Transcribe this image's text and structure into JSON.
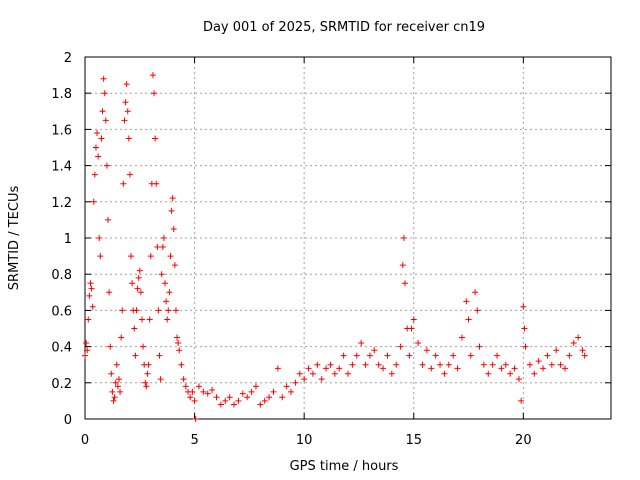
{
  "chart_data": {
    "type": "scatter",
    "title": "Day 001 of 2025, SRMTID for receiver cn19",
    "xlabel": "GPS time / hours",
    "ylabel": "SRMTID / TECUs",
    "xlim": [
      0,
      24
    ],
    "ylim": [
      0,
      2
    ],
    "x_ticks": [
      {
        "value": 0,
        "label": "0"
      },
      {
        "value": 5,
        "label": "5"
      },
      {
        "value": 10,
        "label": "10"
      },
      {
        "value": 15,
        "label": "15"
      },
      {
        "value": 20,
        "label": "20"
      }
    ],
    "y_ticks": [
      {
        "value": 0,
        "label": "0"
      },
      {
        "value": 0.2,
        "label": "0.2"
      },
      {
        "value": 0.4,
        "label": "0.4"
      },
      {
        "value": 0.6,
        "label": "0.6"
      },
      {
        "value": 0.8,
        "label": "0.8"
      },
      {
        "value": 1.0,
        "label": "1"
      },
      {
        "value": 1.2,
        "label": "1.2"
      },
      {
        "value": 1.4,
        "label": "1.4"
      },
      {
        "value": 1.6,
        "label": "1.6"
      },
      {
        "value": 1.8,
        "label": "1.8"
      },
      {
        "value": 2.0,
        "label": "2"
      }
    ],
    "grid": true,
    "series": [
      {
        "name": "SRMTID",
        "color": "#ff0000",
        "marker": "plus",
        "points": [
          [
            0.0,
            0.35
          ],
          [
            0.05,
            0.42
          ],
          [
            0.1,
            0.38
          ],
          [
            0.15,
            0.55
          ],
          [
            0.2,
            0.68
          ],
          [
            0.25,
            0.75
          ],
          [
            0.3,
            0.72
          ],
          [
            0.35,
            0.62
          ],
          [
            0.4,
            1.2
          ],
          [
            0.45,
            1.35
          ],
          [
            0.5,
            1.5
          ],
          [
            0.55,
            1.58
          ],
          [
            0.6,
            1.45
          ],
          [
            0.65,
            1.0
          ],
          [
            0.7,
            0.9
          ],
          [
            0.75,
            1.55
          ],
          [
            0.8,
            1.7
          ],
          [
            0.85,
            1.88
          ],
          [
            0.9,
            1.8
          ],
          [
            0.95,
            1.65
          ],
          [
            1.0,
            1.4
          ],
          [
            1.05,
            1.1
          ],
          [
            1.1,
            0.7
          ],
          [
            1.15,
            0.4
          ],
          [
            1.2,
            0.25
          ],
          [
            1.25,
            0.15
          ],
          [
            1.3,
            0.1
          ],
          [
            1.35,
            0.12
          ],
          [
            1.4,
            0.2
          ],
          [
            1.45,
            0.3
          ],
          [
            1.5,
            0.18
          ],
          [
            1.55,
            0.22
          ],
          [
            1.6,
            0.15
          ],
          [
            1.65,
            0.45
          ],
          [
            1.7,
            0.6
          ],
          [
            1.75,
            1.3
          ],
          [
            1.8,
            1.65
          ],
          [
            1.85,
            1.75
          ],
          [
            1.9,
            1.85
          ],
          [
            1.95,
            1.7
          ],
          [
            2.0,
            1.55
          ],
          [
            2.05,
            1.35
          ],
          [
            2.1,
            0.9
          ],
          [
            2.15,
            0.75
          ],
          [
            2.2,
            0.6
          ],
          [
            2.25,
            0.5
          ],
          [
            2.3,
            0.35
          ],
          [
            2.35,
            0.6
          ],
          [
            2.4,
            0.72
          ],
          [
            2.45,
            0.78
          ],
          [
            2.5,
            0.82
          ],
          [
            2.55,
            0.7
          ],
          [
            2.6,
            0.55
          ],
          [
            2.65,
            0.4
          ],
          [
            2.7,
            0.3
          ],
          [
            2.75,
            0.2
          ],
          [
            2.8,
            0.18
          ],
          [
            2.85,
            0.25
          ],
          [
            2.9,
            0.3
          ],
          [
            2.95,
            0.55
          ],
          [
            3.0,
            0.9
          ],
          [
            3.05,
            1.3
          ],
          [
            3.1,
            1.9
          ],
          [
            3.15,
            1.8
          ],
          [
            3.2,
            1.55
          ],
          [
            3.25,
            1.3
          ],
          [
            3.3,
            0.95
          ],
          [
            3.35,
            0.6
          ],
          [
            3.4,
            0.35
          ],
          [
            3.45,
            0.22
          ],
          [
            3.5,
            0.8
          ],
          [
            3.55,
            0.95
          ],
          [
            3.6,
            1.0
          ],
          [
            3.65,
            0.75
          ],
          [
            3.7,
            0.65
          ],
          [
            3.75,
            0.55
          ],
          [
            3.8,
            0.6
          ],
          [
            3.85,
            0.7
          ],
          [
            3.9,
            0.9
          ],
          [
            3.95,
            1.15
          ],
          [
            4.0,
            1.22
          ],
          [
            4.05,
            1.05
          ],
          [
            4.1,
            0.85
          ],
          [
            4.15,
            0.6
          ],
          [
            4.2,
            0.45
          ],
          [
            4.25,
            0.42
          ],
          [
            4.3,
            0.38
          ],
          [
            4.4,
            0.3
          ],
          [
            4.5,
            0.22
          ],
          [
            4.6,
            0.18
          ],
          [
            4.7,
            0.15
          ],
          [
            4.8,
            0.12
          ],
          [
            4.9,
            0.15
          ],
          [
            5.0,
            0.1
          ],
          [
            5.05,
            0.0
          ],
          [
            5.2,
            0.18
          ],
          [
            5.4,
            0.15
          ],
          [
            5.6,
            0.14
          ],
          [
            5.8,
            0.16
          ],
          [
            6.0,
            0.12
          ],
          [
            6.2,
            0.08
          ],
          [
            6.4,
            0.1
          ],
          [
            6.6,
            0.12
          ],
          [
            6.8,
            0.08
          ],
          [
            7.0,
            0.1
          ],
          [
            7.2,
            0.14
          ],
          [
            7.4,
            0.12
          ],
          [
            7.6,
            0.15
          ],
          [
            7.8,
            0.18
          ],
          [
            8.0,
            0.08
          ],
          [
            8.2,
            0.1
          ],
          [
            8.4,
            0.12
          ],
          [
            8.6,
            0.15
          ],
          [
            8.8,
            0.28
          ],
          [
            9.0,
            0.12
          ],
          [
            9.2,
            0.18
          ],
          [
            9.4,
            0.15
          ],
          [
            9.6,
            0.2
          ],
          [
            9.8,
            0.25
          ],
          [
            10.0,
            0.22
          ],
          [
            10.2,
            0.28
          ],
          [
            10.4,
            0.25
          ],
          [
            10.6,
            0.3
          ],
          [
            10.8,
            0.22
          ],
          [
            11.0,
            0.28
          ],
          [
            11.2,
            0.3
          ],
          [
            11.4,
            0.25
          ],
          [
            11.6,
            0.28
          ],
          [
            11.8,
            0.35
          ],
          [
            12.0,
            0.25
          ],
          [
            12.2,
            0.3
          ],
          [
            12.4,
            0.35
          ],
          [
            12.6,
            0.42
          ],
          [
            12.8,
            0.3
          ],
          [
            13.0,
            0.35
          ],
          [
            13.2,
            0.38
          ],
          [
            13.4,
            0.3
          ],
          [
            13.6,
            0.28
          ],
          [
            13.8,
            0.35
          ],
          [
            14.0,
            0.25
          ],
          [
            14.2,
            0.3
          ],
          [
            14.4,
            0.4
          ],
          [
            14.5,
            0.85
          ],
          [
            14.55,
            1.0
          ],
          [
            14.6,
            0.75
          ],
          [
            14.7,
            0.5
          ],
          [
            14.8,
            0.35
          ],
          [
            14.9,
            0.5
          ],
          [
            15.0,
            0.55
          ],
          [
            15.2,
            0.42
          ],
          [
            15.4,
            0.3
          ],
          [
            15.6,
            0.38
          ],
          [
            15.8,
            0.28
          ],
          [
            16.0,
            0.35
          ],
          [
            16.2,
            0.3
          ],
          [
            16.4,
            0.25
          ],
          [
            16.6,
            0.3
          ],
          [
            16.8,
            0.35
          ],
          [
            17.0,
            0.28
          ],
          [
            17.2,
            0.45
          ],
          [
            17.4,
            0.65
          ],
          [
            17.5,
            0.55
          ],
          [
            17.6,
            0.35
          ],
          [
            17.8,
            0.7
          ],
          [
            17.9,
            0.6
          ],
          [
            18.0,
            0.4
          ],
          [
            18.2,
            0.3
          ],
          [
            18.4,
            0.25
          ],
          [
            18.6,
            0.3
          ],
          [
            18.8,
            0.35
          ],
          [
            19.0,
            0.28
          ],
          [
            19.2,
            0.3
          ],
          [
            19.4,
            0.25
          ],
          [
            19.6,
            0.28
          ],
          [
            19.8,
            0.22
          ],
          [
            19.9,
            0.1
          ],
          [
            20.0,
            0.62
          ],
          [
            20.05,
            0.5
          ],
          [
            20.1,
            0.4
          ],
          [
            20.3,
            0.3
          ],
          [
            20.5,
            0.25
          ],
          [
            20.7,
            0.32
          ],
          [
            20.9,
            0.28
          ],
          [
            21.1,
            0.35
          ],
          [
            21.3,
            0.3
          ],
          [
            21.5,
            0.38
          ],
          [
            21.7,
            0.3
          ],
          [
            21.9,
            0.28
          ],
          [
            22.1,
            0.35
          ],
          [
            22.3,
            0.42
          ],
          [
            22.5,
            0.45
          ],
          [
            22.7,
            0.38
          ],
          [
            22.8,
            0.35
          ]
        ]
      }
    ]
  }
}
